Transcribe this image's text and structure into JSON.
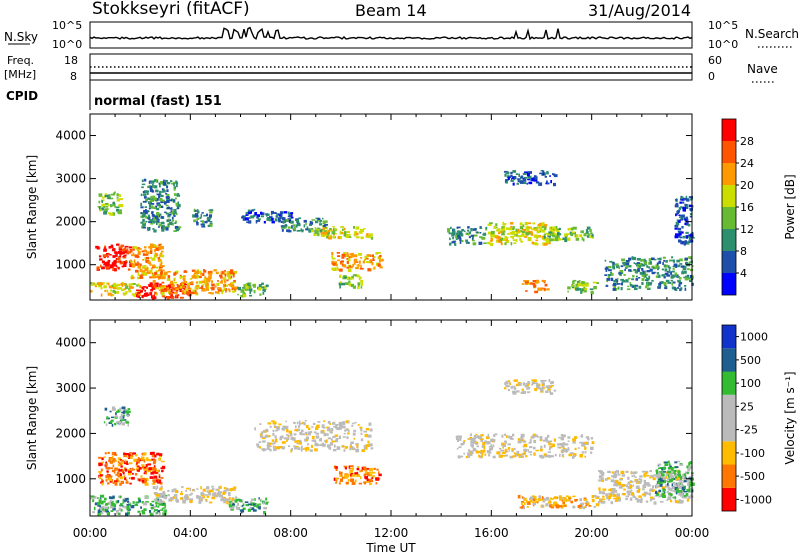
{
  "header": {
    "station": "Stokkseyri (fitACF)",
    "beam": "Beam 14",
    "date": "31/Aug/2014"
  },
  "aux": {
    "nsky_label": "N.Sky",
    "nsky_ticks": [
      "10^5",
      "10^0"
    ],
    "nsearch_label": "N.Search",
    "nsearch_ticks": [
      "10^5",
      "10^0"
    ],
    "freq_label_1": "Freq.",
    "freq_label_2": "[MHz]",
    "freq_ticks": [
      "18",
      "8"
    ],
    "nave_label": "Nave",
    "nave_ticks": [
      "60",
      "0"
    ],
    "cpid_label": "CPID",
    "cpid_value": "normal (fast) 151"
  },
  "colors": {
    "power": [
      "#0000ff",
      "#1e4faa",
      "#2e8f6f",
      "#66bb33",
      "#ccdd00",
      "#ff9900",
      "#ff5500",
      "#ff0000"
    ],
    "velocity": [
      "#ff0000",
      "#ff7700",
      "#ffbb00",
      "#bbbbbb",
      "#bbbbbb",
      "#33bb33",
      "#1e5f8f",
      "#1133cc"
    ]
  },
  "chart_data": [
    {
      "type": "heatmap",
      "name": "power",
      "xlabel": "",
      "ylabel": "Slant Range [km]",
      "xlim": [
        0,
        24
      ],
      "ylim": [
        180,
        4500
      ],
      "yticks": [
        1000,
        2000,
        3000,
        4000
      ],
      "colorbar_label": "Power [dB]",
      "colorbar_ticks": [
        "4",
        "8",
        "12",
        "16",
        "20",
        "24",
        "28"
      ],
      "regions": [
        {
          "t0": 0.2,
          "t1": 1.6,
          "r0": 900,
          "r1": 1500,
          "level": 7
        },
        {
          "t0": 1.6,
          "t1": 2.9,
          "r0": 700,
          "r1": 1500,
          "level": 5
        },
        {
          "t0": 0.0,
          "t1": 2.0,
          "r0": 300,
          "r1": 600,
          "level": 4
        },
        {
          "t0": 1.8,
          "t1": 4.0,
          "r0": 250,
          "r1": 600,
          "level": 7
        },
        {
          "t0": 2.5,
          "t1": 5.8,
          "r0": 350,
          "r1": 900,
          "level": 5
        },
        {
          "t0": 5.8,
          "t1": 7.0,
          "r0": 280,
          "r1": 600,
          "level": 3
        },
        {
          "t0": 0.3,
          "t1": 1.2,
          "r0": 2200,
          "r1": 2700,
          "level": 3
        },
        {
          "t0": 2.0,
          "t1": 3.5,
          "r0": 1800,
          "r1": 3000,
          "level": 2
        },
        {
          "t0": 4.0,
          "t1": 4.8,
          "r0": 1900,
          "r1": 2300,
          "level": 2
        },
        {
          "t0": 6.0,
          "t1": 8.0,
          "r0": 2000,
          "r1": 2300,
          "level": 1
        },
        {
          "t0": 7.6,
          "t1": 9.4,
          "r0": 1800,
          "r1": 2100,
          "level": 2
        },
        {
          "t0": 8.8,
          "t1": 11.2,
          "r0": 1650,
          "r1": 1900,
          "level": 4
        },
        {
          "t0": 9.6,
          "t1": 11.6,
          "r0": 900,
          "r1": 1300,
          "level": 5
        },
        {
          "t0": 9.9,
          "t1": 10.8,
          "r0": 500,
          "r1": 800,
          "level": 3
        },
        {
          "t0": 14.2,
          "t1": 15.8,
          "r0": 1500,
          "r1": 1900,
          "level": 2
        },
        {
          "t0": 15.8,
          "t1": 18.5,
          "r0": 1500,
          "r1": 2000,
          "level": 4
        },
        {
          "t0": 18.0,
          "t1": 20.0,
          "r0": 1600,
          "r1": 1900,
          "level": 3
        },
        {
          "t0": 16.5,
          "t1": 18.5,
          "r0": 2900,
          "r1": 3200,
          "level": 1
        },
        {
          "t0": 17.2,
          "t1": 18.2,
          "r0": 380,
          "r1": 650,
          "level": 5
        },
        {
          "t0": 19.0,
          "t1": 20.2,
          "r0": 380,
          "r1": 650,
          "level": 3
        },
        {
          "t0": 20.5,
          "t1": 24.0,
          "r0": 450,
          "r1": 1200,
          "level": 2
        },
        {
          "t0": 23.3,
          "t1": 24.0,
          "r0": 1500,
          "r1": 2600,
          "level": 1
        }
      ]
    },
    {
      "type": "heatmap",
      "name": "velocity",
      "xlabel": "Time UT",
      "ylabel": "Slant Range [km]",
      "xlim": [
        0,
        24
      ],
      "ylim": [
        180,
        4500
      ],
      "yticks": [
        1000,
        2000,
        3000,
        4000
      ],
      "xticks": [
        "00:00",
        "04:00",
        "08:00",
        "12:00",
        "16:00",
        "20:00",
        "00:00"
      ],
      "colorbar_label": "Velocity [m s⁻¹]",
      "colorbar_ticks": [
        "-1000",
        "-500",
        "-100",
        "-25",
        "25",
        "100",
        "500",
        "1000"
      ],
      "regions": [
        {
          "t0": 0.3,
          "t1": 2.9,
          "r0": 900,
          "r1": 1600,
          "level": 1
        },
        {
          "t0": 0.0,
          "t1": 3.0,
          "r0": 250,
          "r1": 650,
          "level": 5
        },
        {
          "t0": 2.5,
          "t1": 5.8,
          "r0": 500,
          "r1": 850,
          "level": 3
        },
        {
          "t0": 5.5,
          "t1": 7.0,
          "r0": 280,
          "r1": 600,
          "level": 5
        },
        {
          "t0": 0.5,
          "t1": 1.5,
          "r0": 2200,
          "r1": 2600,
          "level": 5
        },
        {
          "t0": 6.5,
          "t1": 11.2,
          "r0": 1650,
          "r1": 2300,
          "level": 3
        },
        {
          "t0": 9.7,
          "t1": 11.5,
          "r0": 900,
          "r1": 1300,
          "level": 1
        },
        {
          "t0": 14.5,
          "t1": 20.0,
          "r0": 1500,
          "r1": 2000,
          "level": 3
        },
        {
          "t0": 16.5,
          "t1": 18.5,
          "r0": 2900,
          "r1": 3200,
          "level": 3
        },
        {
          "t0": 17.0,
          "t1": 20.2,
          "r0": 380,
          "r1": 650,
          "level": 2
        },
        {
          "t0": 20.2,
          "t1": 24.0,
          "r0": 500,
          "r1": 1200,
          "level": 3
        },
        {
          "t0": 22.5,
          "t1": 24.0,
          "r0": 600,
          "r1": 1400,
          "level": 5
        }
      ]
    }
  ]
}
